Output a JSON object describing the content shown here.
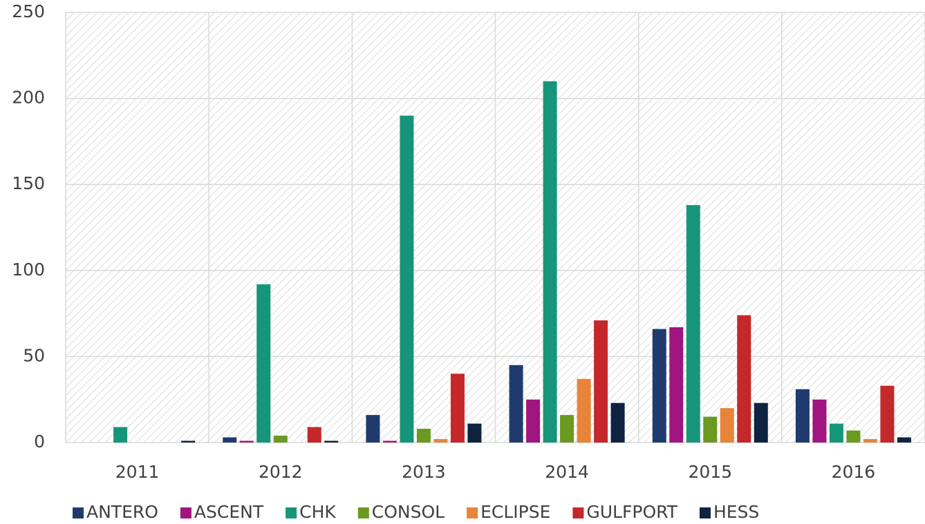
{
  "chart_data": {
    "type": "bar",
    "categories": [
      "2011",
      "2012",
      "2013",
      "2014",
      "2015",
      "2016"
    ],
    "series": [
      {
        "name": "ANTERO",
        "color": "#1f3b6e",
        "values": [
          0,
          3,
          16,
          45,
          66,
          31
        ]
      },
      {
        "name": "ASCENT",
        "color": "#a0157f",
        "values": [
          0,
          1,
          1,
          25,
          67,
          25
        ]
      },
      {
        "name": "CHK",
        "color": "#17957a",
        "values": [
          9,
          92,
          190,
          210,
          138,
          11
        ]
      },
      {
        "name": "CONSOL",
        "color": "#6a9a1f",
        "values": [
          0,
          4,
          8,
          16,
          15,
          7
        ]
      },
      {
        "name": "ECLIPSE",
        "color": "#e8843a",
        "values": [
          0,
          0,
          2,
          37,
          20,
          2
        ]
      },
      {
        "name": "GULFPORT",
        "color": "#c4282a",
        "values": [
          0,
          9,
          40,
          71,
          74,
          33
        ]
      },
      {
        "name": "HESS",
        "color": "#0e2340",
        "values": [
          1,
          1,
          11,
          23,
          23,
          3
        ]
      }
    ],
    "ylim": [
      0,
      250
    ],
    "yticks": [
      0,
      50,
      100,
      150,
      200,
      250
    ],
    "grid": true,
    "legend": "bottom"
  }
}
